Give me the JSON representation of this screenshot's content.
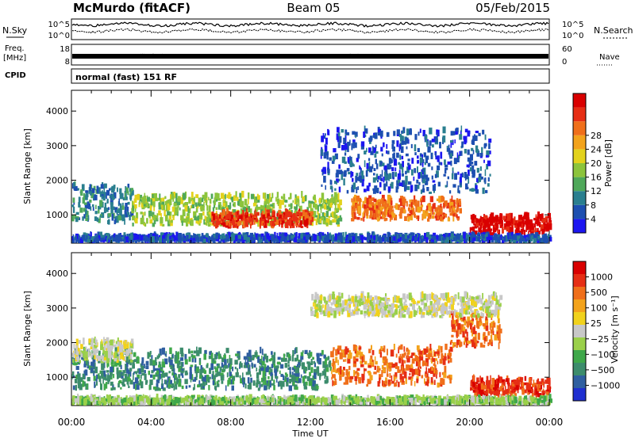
{
  "header": {
    "station": "McMurdo (fitACF)",
    "beam": "Beam 05",
    "date": "05/Feb/2015"
  },
  "status_panels": {
    "nsky_label": "N.Sky",
    "nsearch_label": "N.Search",
    "noise_ticks": [
      "10^5",
      "10^0"
    ],
    "freq_label_1": "Freq.",
    "freq_label_2": "[MHz]",
    "freq_ticks": [
      "18",
      "8"
    ],
    "nave_label": "Nave",
    "nave_ticks": [
      "60",
      "0"
    ],
    "cpid_label": "CPID",
    "cpid_value": "normal (fast) 151 RF"
  },
  "chart_data": [
    {
      "type": "heatmap",
      "name": "power",
      "ylabel": "Slant Range [km]",
      "xlabel": "Time UT",
      "x_ticks": [
        "00:00",
        "04:00",
        "08:00",
        "12:00",
        "16:00",
        "20:00",
        "00:00"
      ],
      "xlim": [
        0,
        24
      ],
      "ylim": [
        180,
        4600
      ],
      "y_ticks": [
        1000,
        2000,
        3000,
        4000
      ],
      "colorbar_label": "Power [dB]",
      "colorbar_ticks": [
        "4",
        "8",
        "12",
        "16",
        "20",
        "24",
        "28"
      ],
      "colorbar_colors": [
        "#1c16f0",
        "#1d4fb0",
        "#2a7f8f",
        "#4fa85a",
        "#8cc43c",
        "#e3d21c",
        "#f3a31c",
        "#f06f1a",
        "#e62e14",
        "#d90000"
      ],
      "bands": [
        {
          "t0": 0.0,
          "t1": 3.0,
          "r0": 700,
          "r1": 1800,
          "level": 2
        },
        {
          "t0": 3.0,
          "t1": 13.5,
          "r0": 650,
          "r1": 1500,
          "level": 4
        },
        {
          "t0": 7.0,
          "t1": 12.0,
          "r0": 600,
          "r1": 1000,
          "level": 8
        },
        {
          "t0": 14.0,
          "t1": 19.5,
          "r0": 800,
          "r1": 1400,
          "level": 7
        },
        {
          "t0": 20.0,
          "t1": 24.0,
          "r0": 400,
          "r1": 900,
          "level": 9
        },
        {
          "t0": 12.5,
          "t1": 21.0,
          "r0": 1600,
          "r1": 3400,
          "level": 1
        },
        {
          "t0": 0.0,
          "t1": 24.0,
          "r0": 180,
          "r1": 320,
          "level": 1
        }
      ]
    },
    {
      "type": "heatmap",
      "name": "velocity",
      "ylabel": "Slant Range [km]",
      "xlabel": "Time UT",
      "x_ticks": [
        "00:00",
        "04:00",
        "08:00",
        "12:00",
        "16:00",
        "20:00",
        "00:00"
      ],
      "xlim": [
        0,
        24
      ],
      "ylim": [
        180,
        4600
      ],
      "y_ticks": [
        1000,
        2000,
        3000,
        4000
      ],
      "colorbar_label": "Velocity [m s⁻¹]",
      "colorbar_ticks": [
        "1000",
        "500",
        "100",
        "25",
        "−25",
        "−100",
        "−500",
        "−1000"
      ],
      "colorbar_colors": [
        "#1f2fd0",
        "#2f5fa0",
        "#3c8c6c",
        "#3fa84a",
        "#9ad04a",
        "#c8c8c8",
        "#f1d21c",
        "#f3a31c",
        "#f06f1a",
        "#e62e14",
        "#d90000"
      ],
      "bands": [
        {
          "t0": 0.0,
          "t1": 13.0,
          "r0": 600,
          "r1": 1700,
          "level": 2
        },
        {
          "t0": 0.0,
          "t1": 3.0,
          "r0": 1400,
          "r1": 2000,
          "level": 5
        },
        {
          "t0": 13.0,
          "t1": 19.0,
          "r0": 700,
          "r1": 1800,
          "level": 8
        },
        {
          "t0": 19.0,
          "t1": 21.5,
          "r0": 1800,
          "r1": 2800,
          "level": 8
        },
        {
          "t0": 20.0,
          "t1": 24.0,
          "r0": 400,
          "r1": 900,
          "level": 9
        },
        {
          "t0": 12.0,
          "t1": 21.5,
          "r0": 2700,
          "r1": 3300,
          "level": 5
        },
        {
          "t0": 0.0,
          "t1": 24.0,
          "r0": 180,
          "r1": 320,
          "level": 4
        }
      ]
    }
  ]
}
